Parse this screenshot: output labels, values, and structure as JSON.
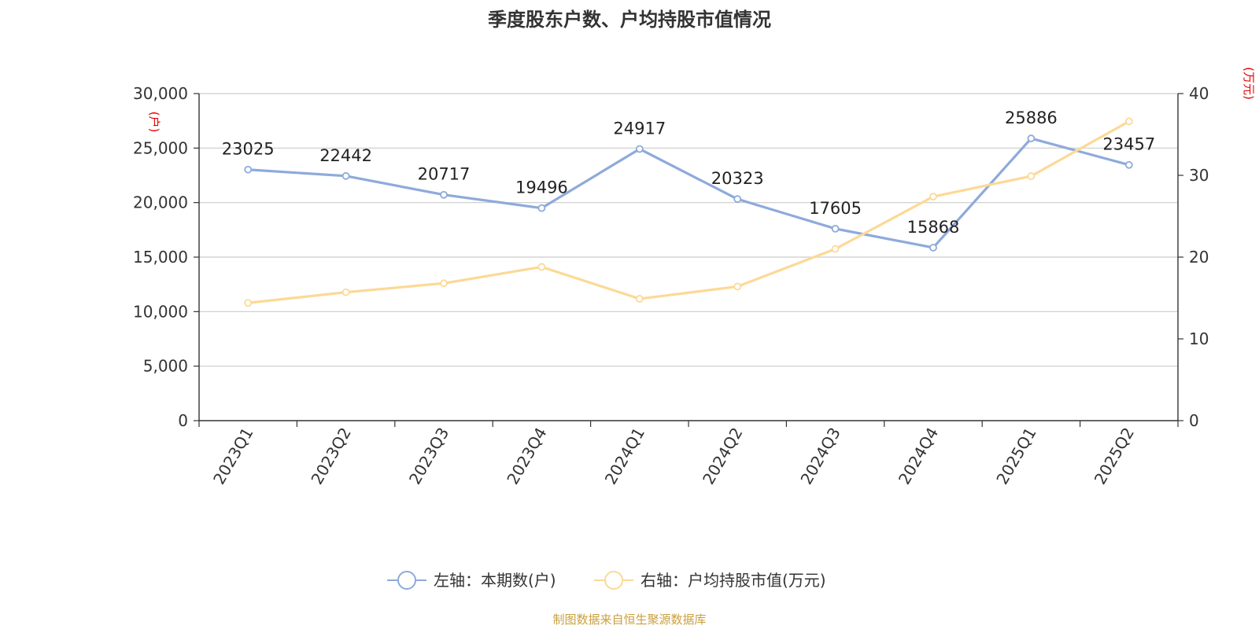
{
  "chart_data": {
    "type": "line",
    "title": "季度股东户数、户均持股市值情况",
    "categories": [
      "2023Q1",
      "2023Q2",
      "2023Q3",
      "2023Q4",
      "2024Q1",
      "2024Q2",
      "2024Q3",
      "2024Q4",
      "2025Q1",
      "2025Q2"
    ],
    "y_left": {
      "unit": "(户)",
      "range": [
        0,
        30000
      ],
      "ticks": [
        "0",
        "5,000",
        "10,000",
        "15,000",
        "20,000",
        "25,000",
        "30,000"
      ],
      "tick_values": [
        0,
        5000,
        10000,
        15000,
        20000,
        25000,
        30000
      ]
    },
    "y_right": {
      "unit": "(万元)",
      "range": [
        0,
        40
      ],
      "ticks": [
        "0",
        "10",
        "20",
        "30",
        "40"
      ],
      "tick_values": [
        0,
        10,
        20,
        30,
        40
      ]
    },
    "series": [
      {
        "name": "左轴：本期数(户)",
        "axis": "left",
        "color": "#8eaadb",
        "values": [
          23025,
          22442,
          20717,
          19496,
          24917,
          20323,
          17605,
          15868,
          25886,
          23457
        ],
        "labels": [
          "23025",
          "22442",
          "20717",
          "19496",
          "24917",
          "20323",
          "17605",
          "15868",
          "25886",
          "23457"
        ]
      },
      {
        "name": "右轴：户均持股市值(万元)",
        "axis": "right",
        "color": "#fcd996",
        "values": [
          14.4,
          15.7,
          16.8,
          18.8,
          14.9,
          16.4,
          21.0,
          27.4,
          29.9,
          36.6
        ]
      }
    ],
    "grid": true,
    "legend_position": "bottom-center"
  },
  "source": "制图数据来自恒生聚源数据库"
}
